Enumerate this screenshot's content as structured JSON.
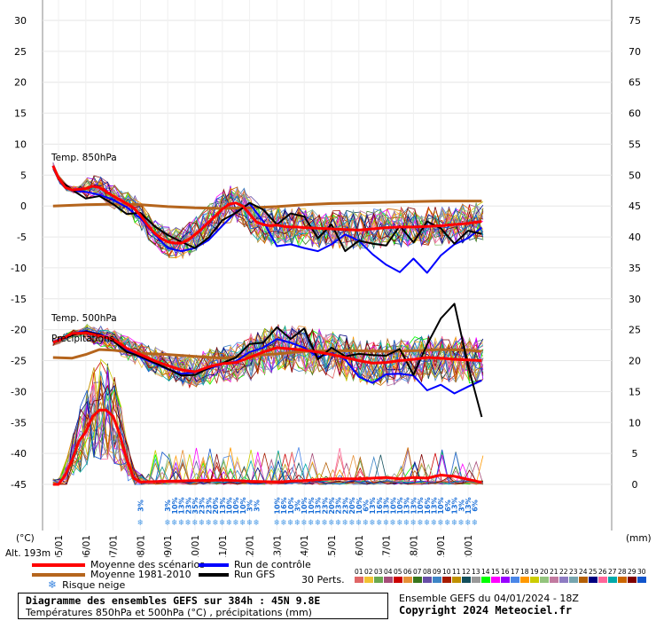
{
  "chart_data": {
    "type": "line",
    "title": "Diagramme des ensembles GEFS sur 384h : 45N 9.8E",
    "subtitle": "Températures 850hPa et 500hPa (°C) , précipitations (mm)",
    "run_info": "Ensemble GEFS du 04/01/2024 - 18Z",
    "copyright": "Copyright 2024 Meteociel.fr",
    "altitude": "Alt. 193m",
    "left_unit": "(°C)",
    "right_unit": "(mm)",
    "left_axis": {
      "range": [
        -45,
        30
      ],
      "ticks": [
        "30",
        "25",
        "20",
        "15",
        "10",
        "5",
        "0",
        "-5",
        "-10",
        "-15",
        "-20",
        "-25",
        "-30",
        "-35",
        "-40",
        "-45"
      ]
    },
    "right_axis": {
      "range": [
        0,
        75
      ],
      "ticks": [
        "75",
        "70",
        "65",
        "60",
        "55",
        "50",
        "45",
        "40",
        "35",
        "30",
        "25",
        "20",
        "15",
        "10",
        "5",
        "0"
      ]
    },
    "x_dates": [
      "05/01",
      "06/01",
      "07/01",
      "08/01",
      "09/01",
      "10/01",
      "11/01",
      "12/01",
      "13/01",
      "14/01",
      "15/01",
      "16/01",
      "17/01",
      "18/01",
      "19/01",
      "20/01"
    ],
    "annotations": [
      "Temp. 850hPa",
      "Temp. 500hPa",
      "Précipitations"
    ],
    "snow_risk": [
      {
        "day": 3.0,
        "pct": "3%"
      },
      {
        "day": 4.0,
        "pct": "3%"
      },
      {
        "day": 4.25,
        "pct": "10%"
      },
      {
        "day": 4.5,
        "pct": "13%"
      },
      {
        "day": 4.75,
        "pct": "23%"
      },
      {
        "day": 5.0,
        "pct": "35%"
      },
      {
        "day": 5.25,
        "pct": "23%"
      },
      {
        "day": 5.5,
        "pct": "23%"
      },
      {
        "day": 5.75,
        "pct": "20%"
      },
      {
        "day": 6.0,
        "pct": "13%"
      },
      {
        "day": 6.25,
        "pct": "10%"
      },
      {
        "day": 6.5,
        "pct": "10%"
      },
      {
        "day": 6.75,
        "pct": "10%"
      },
      {
        "day": 7.0,
        "pct": "3%"
      },
      {
        "day": 7.25,
        "pct": "3%"
      },
      {
        "day": 8.0,
        "pct": "10%"
      },
      {
        "day": 8.25,
        "pct": "16%"
      },
      {
        "day": 8.5,
        "pct": "10%"
      },
      {
        "day": 8.75,
        "pct": "3%"
      },
      {
        "day": 9.0,
        "pct": "10%"
      },
      {
        "day": 9.25,
        "pct": "10%"
      },
      {
        "day": 9.5,
        "pct": "13%"
      },
      {
        "day": 9.75,
        "pct": "23%"
      },
      {
        "day": 10.0,
        "pct": "20%"
      },
      {
        "day": 10.25,
        "pct": "23%"
      },
      {
        "day": 10.5,
        "pct": "23%"
      },
      {
        "day": 10.75,
        "pct": "20%"
      },
      {
        "day": 11.0,
        "pct": "10%"
      },
      {
        "day": 11.25,
        "pct": "6%"
      },
      {
        "day": 11.5,
        "pct": "13%"
      },
      {
        "day": 11.75,
        "pct": "16%"
      },
      {
        "day": 12.0,
        "pct": "13%"
      },
      {
        "day": 12.25,
        "pct": "10%"
      },
      {
        "day": 12.5,
        "pct": "10%"
      },
      {
        "day": 12.75,
        "pct": "13%"
      },
      {
        "day": 13.0,
        "pct": "13%"
      },
      {
        "day": 13.25,
        "pct": "10%"
      },
      {
        "day": 13.5,
        "pct": "16%"
      },
      {
        "day": 13.75,
        "pct": "13%"
      },
      {
        "day": 14.0,
        "pct": "10%"
      },
      {
        "day": 14.25,
        "pct": "6%"
      },
      {
        "day": 14.5,
        "pct": "13%"
      },
      {
        "day": 14.75,
        "pct": "3%"
      },
      {
        "day": 15.0,
        "pct": "13%"
      },
      {
        "day": 15.25,
        "pct": "6%"
      }
    ],
    "series": [
      {
        "name": "Moyenne des scénarios",
        "panel": "t850",
        "color": "#ff0000",
        "x": [
          -0.2,
          0,
          0.25,
          0.5,
          0.75,
          1,
          1.25,
          1.5,
          1.75,
          2,
          2.25,
          2.5,
          2.75,
          3,
          3.25,
          3.5,
          3.75,
          4,
          4.25,
          4.5,
          4.75,
          5,
          5.25,
          5.5,
          5.75,
          6,
          6.25,
          6.5,
          6.75,
          7,
          7.25,
          7.5,
          7.75,
          8,
          8.25,
          8.5,
          8.75,
          9,
          9.5,
          10,
          10.5,
          11,
          11.5,
          12,
          12.5,
          13,
          13.5,
          14,
          14.5,
          15,
          15.5
        ],
        "y": [
          6.5,
          4.5,
          3,
          2.6,
          2.7,
          2.8,
          3.2,
          3,
          2.3,
          1.6,
          1,
          0.4,
          -0.3,
          -1.5,
          -3,
          -4.3,
          -5.2,
          -5.8,
          -6,
          -6,
          -5.5,
          -4.6,
          -3.7,
          -2.6,
          -1.6,
          -0.5,
          0.3,
          0.5,
          0,
          -1.3,
          -2.6,
          -3,
          -3.2,
          -3.1,
          -3.3,
          -3.4,
          -3.4,
          -3.5,
          -3.6,
          -3.7,
          -3.8,
          -3.9,
          -3.7,
          -3.5,
          -3.4,
          -3.4,
          -3.3,
          -3.2,
          -3,
          -2.8,
          -2.5
        ]
      },
      {
        "name": "Moyenne 1981-2010",
        "panel": "t850",
        "color": "#b5651d",
        "x": [
          -0.2,
          1,
          2,
          3,
          4,
          5,
          6,
          7,
          8,
          9,
          10,
          11,
          12,
          13,
          14,
          15,
          15.5
        ],
        "y": [
          0,
          0.2,
          0.3,
          0.2,
          -0.1,
          -0.3,
          -0.4,
          -0.3,
          -0.1,
          0.2,
          0.4,
          0.5,
          0.6,
          0.7,
          0.8,
          0.8,
          0.8
        ]
      },
      {
        "name": "Run de contrôle",
        "panel": "t850",
        "color": "#0000ff",
        "x": [
          -0.2,
          0,
          0.5,
          1,
          1.5,
          2,
          2.5,
          3,
          3.5,
          4,
          4.5,
          5,
          5.5,
          6,
          6.5,
          7,
          7.5,
          8,
          8.5,
          9,
          9.5,
          10,
          10.5,
          11,
          11.5,
          12,
          12.5,
          13,
          13.5,
          14,
          14.5,
          15,
          15.5
        ],
        "y": [
          6.5,
          4.3,
          2.5,
          2.3,
          1.8,
          1,
          -0.2,
          -2,
          -4.5,
          -6.8,
          -7.3,
          -6.8,
          -5.5,
          -3.2,
          -1,
          0.4,
          -2.5,
          -6.5,
          -6.2,
          -6.8,
          -7.3,
          -6.2,
          -4.6,
          -5.6,
          -7.8,
          -9.5,
          -10.7,
          -8.5,
          -10.8,
          -8,
          -6.2,
          -5.2,
          -3.5
        ]
      },
      {
        "name": "Run GFS",
        "panel": "t850",
        "color": "#000000",
        "x": [
          -0.2,
          0,
          0.5,
          1,
          1.5,
          2,
          2.5,
          3,
          3.5,
          4,
          4.5,
          5,
          5.5,
          6,
          6.5,
          7,
          7.5,
          8,
          8.5,
          9,
          9.5,
          10,
          10.5,
          11,
          11.5,
          12,
          12.5,
          13,
          13.5,
          14,
          14.5,
          15,
          15.5
        ],
        "y": [
          6.5,
          4.3,
          2.6,
          1.2,
          1.6,
          0.3,
          -1.3,
          -1.1,
          -3.2,
          -4.7,
          -5.8,
          -6.8,
          -5.1,
          -2.3,
          -1.1,
          0.5,
          -0.6,
          -3,
          -1.2,
          -1.7,
          -5.2,
          -3,
          -7.3,
          -5.6,
          -6.1,
          -6.4,
          -3.2,
          -5.9,
          -2.5,
          -3.6,
          -6.1,
          -4,
          -4.5
        ]
      },
      {
        "name": "Moyenne des scénarios",
        "panel": "t500",
        "color": "#ff0000",
        "x": [
          -0.2,
          0,
          0.5,
          1,
          1.5,
          2,
          2.5,
          3,
          3.5,
          4,
          4.5,
          5,
          5.5,
          6,
          6.5,
          7,
          7.5,
          8,
          8.5,
          9,
          9.5,
          10,
          10.5,
          11,
          11.5,
          12,
          12.5,
          13,
          13.5,
          14,
          14.5,
          15,
          15.5
        ],
        "y": [
          -22,
          -21.8,
          -20.6,
          -20.5,
          -21,
          -21.5,
          -23,
          -24,
          -25,
          -25.8,
          -26.5,
          -26.8,
          -26,
          -25.5,
          -25.3,
          -24.5,
          -23.6,
          -22.9,
          -23.1,
          -23.3,
          -23.6,
          -24,
          -24.5,
          -25,
          -25.4,
          -25.3,
          -25,
          -24.8,
          -24.5,
          -24.6,
          -24.8,
          -24.9,
          -25
        ]
      },
      {
        "name": "Moyenne 1981-2010",
        "panel": "t500",
        "color": "#b5651d",
        "x": [
          -0.2,
          0.5,
          1,
          1.5,
          2,
          3,
          4,
          5,
          6,
          7,
          8,
          9,
          10,
          11,
          12,
          13,
          14,
          15,
          15.5
        ],
        "y": [
          -24.5,
          -24.6,
          -24,
          -23.2,
          -23.3,
          -23.8,
          -24,
          -24.3,
          -24.6,
          -24.2,
          -23.9,
          -23.5,
          -23.4,
          -23.4,
          -23.5,
          -23.4,
          -23.2,
          -23.3,
          -23.5
        ]
      },
      {
        "name": "Run de contrôle",
        "panel": "t500",
        "color": "#0000ff",
        "x": [
          -0.2,
          0,
          0.5,
          1,
          1.5,
          2,
          2.5,
          3,
          3.5,
          4,
          4.5,
          5,
          5.5,
          6,
          6.5,
          7,
          7.5,
          8,
          8.5,
          9,
          9.5,
          10,
          10.5,
          11,
          11.5,
          12,
          12.5,
          13,
          13.5,
          14,
          14.5,
          15,
          15.5
        ],
        "y": [
          -22,
          -21.6,
          -20.7,
          -20.2,
          -20.7,
          -21.6,
          -23.3,
          -24.5,
          -25.4,
          -26.4,
          -27.1,
          -26.9,
          -26.3,
          -25.6,
          -25.1,
          -23.6,
          -22.9,
          -21.5,
          -22.1,
          -22.9,
          -24.4,
          -23.8,
          -24.8,
          -27.6,
          -28.6,
          -27.2,
          -27.1,
          -27.4,
          -29.8,
          -28.9,
          -30.3,
          -29.2,
          -28.2
        ]
      },
      {
        "name": "Run GFS",
        "panel": "t500",
        "color": "#000000",
        "x": [
          -0.2,
          0,
          0.5,
          1,
          1.5,
          2,
          2.5,
          3,
          3.5,
          4,
          4.5,
          5,
          5.5,
          6,
          6.5,
          7,
          7.5,
          8,
          8.5,
          9,
          9.5,
          10,
          10.5,
          11,
          11.5,
          12,
          12.5,
          13,
          13.5,
          14,
          14.5,
          15,
          15.5
        ],
        "y": [
          -22,
          -21.7,
          -20.9,
          -20.3,
          -20.8,
          -21.8,
          -23.6,
          -24.3,
          -25.3,
          -26.3,
          -27.4,
          -27.3,
          -26.2,
          -25.4,
          -24.5,
          -22.3,
          -22.1,
          -19.6,
          -21.5,
          -19.8,
          -24.8,
          -22.9,
          -24.3,
          -23.9,
          -24.1,
          -24.2,
          -23.1,
          -27.3,
          -22.4,
          -18.2,
          -15.8,
          -25.8,
          -34.1
        ]
      },
      {
        "name": "Moyenne des scénarios",
        "panel": "precip",
        "color": "#ff0000",
        "x": [
          -0.2,
          0,
          0.25,
          0.5,
          0.75,
          1,
          1.25,
          1.5,
          1.75,
          2,
          2.25,
          2.5,
          2.75,
          3,
          4,
          5,
          6,
          7,
          8,
          9,
          10,
          11,
          12,
          12.5,
          13,
          13.5,
          14,
          14.5,
          15,
          15.5
        ],
        "y": [
          0,
          0,
          1.5,
          4,
          7,
          8.5,
          11,
          12,
          12,
          11,
          8,
          4,
          1,
          0.4,
          0.5,
          0.6,
          0.7,
          0.5,
          0.4,
          0.6,
          0.9,
          0.9,
          1.1,
          0.9,
          1.1,
          1,
          1.5,
          1.3,
          0.8,
          0.3
        ]
      }
    ]
  },
  "legend": {
    "items": [
      {
        "label": "Moyenne des scénarios",
        "color": "#ff0000"
      },
      {
        "label": "Moyenne 1981-2010",
        "color": "#b5651d"
      },
      {
        "label": "Risque neige",
        "icon": "snowflake-icon"
      },
      {
        "label": "Run de contrôle",
        "color": "#0000ff"
      },
      {
        "label": "Run GFS",
        "color": "#000000"
      }
    ],
    "perts_label": "30 Perts.",
    "pert_colors": [
      "#e06666",
      "#f1c232",
      "#6aa84f",
      "#a64d79",
      "#cc0000",
      "#e69138",
      "#38761d",
      "#674ea7",
      "#3d85c6",
      "#a61c00",
      "#bf9000",
      "#134f5c",
      "#999999",
      "#00ff00",
      "#ff00ff",
      "#9900ff",
      "#4a86e8",
      "#ff9900",
      "#cccc00",
      "#93c47d",
      "#c27ba0",
      "#8e7cc3",
      "#76a5af",
      "#b45f06",
      "#000080",
      "#ff6699",
      "#00aaaa",
      "#cc6600",
      "#800000",
      "#1155cc"
    ]
  }
}
